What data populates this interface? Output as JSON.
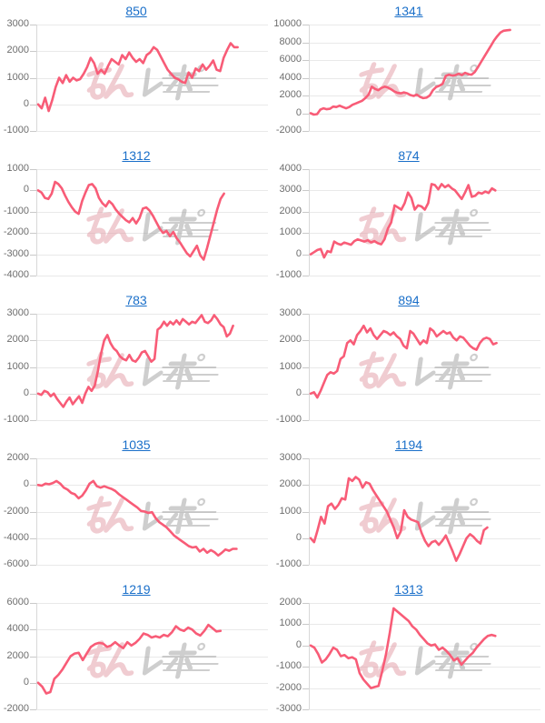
{
  "watermark": {
    "text": "みんレポ",
    "pink": "#e39aa5",
    "gray": "#9f9f9f",
    "opacity": 0.5
  },
  "colors": {
    "line": "#f85c77",
    "grid": "#e9e9e9",
    "tick_dash": "#c9c9c9",
    "axis": "#d8d8d8",
    "label": "#6e6e6e",
    "link": "#1a6fc9",
    "background": "#ffffff"
  },
  "chart_data": [
    {
      "type": "line",
      "title": "850",
      "legend": "none",
      "grid": "horizontal",
      "ticks": [
        3000,
        2000,
        1000,
        0,
        -1000
      ],
      "ylim": [
        -1000,
        3000
      ],
      "x_span": 0.875,
      "values": [
        0,
        -150,
        250,
        -250,
        150,
        650,
        1000,
        800,
        1100,
        850,
        1000,
        900,
        950,
        1150,
        1400,
        1750,
        1550,
        1150,
        1300,
        1150,
        1450,
        1700,
        1600,
        1500,
        1850,
        1700,
        1950,
        1750,
        1600,
        1700,
        1550,
        1850,
        1950,
        2150,
        2050,
        1800,
        1550,
        1300,
        1150,
        1000,
        950,
        850,
        800,
        1200,
        1000,
        1350,
        1250,
        1500,
        1300,
        1450,
        1650,
        1300,
        1250,
        1750,
        2050,
        2300,
        2150,
        2150
      ]
    },
    {
      "type": "line",
      "title": "1341",
      "legend": "none",
      "grid": "horizontal",
      "ticks": [
        10000,
        8000,
        6000,
        4000,
        2000,
        0,
        -2000
      ],
      "ylim": [
        -2000,
        10000
      ],
      "x_span": 0.875,
      "values": [
        0,
        -150,
        -100,
        400,
        550,
        450,
        500,
        750,
        700,
        850,
        700,
        550,
        700,
        950,
        1100,
        1250,
        1400,
        1700,
        2100,
        3000,
        2750,
        2600,
        2850,
        3000,
        2900,
        2700,
        2450,
        2300,
        2250,
        2350,
        2250,
        2050,
        1950,
        2100,
        1850,
        1700,
        1750,
        2000,
        2600,
        2950,
        3100,
        3300,
        4200,
        4350,
        4250,
        4300,
        4450,
        4300,
        4550,
        4400,
        4350,
        4650,
        5200,
        5800,
        6400,
        7000,
        7600,
        8200,
        8700,
        9100,
        9300,
        9350,
        9400
      ]
    },
    {
      "type": "line",
      "title": "1312",
      "legend": "none",
      "grid": "horizontal",
      "ticks": [
        1000,
        0,
        -1000,
        -2000,
        -3000,
        -4000
      ],
      "ylim": [
        -4000,
        1000
      ],
      "x_span": 0.815,
      "values": [
        0,
        -100,
        -350,
        -400,
        -150,
        400,
        300,
        100,
        -250,
        -550,
        -800,
        -1000,
        -1100,
        -500,
        -100,
        250,
        300,
        100,
        -350,
        -600,
        -750,
        -500,
        -650,
        -900,
        -1100,
        -1250,
        -1400,
        -1500,
        -1300,
        -1550,
        -1300,
        -850,
        -800,
        -950,
        -1200,
        -1500,
        -1800,
        -2000,
        -1900,
        -2150,
        -1950,
        -2250,
        -2450,
        -2700,
        -2950,
        -3100,
        -2850,
        -2600,
        -3050,
        -3250,
        -2700,
        -2100,
        -1500,
        -900,
        -400,
        -150
      ]
    },
    {
      "type": "line",
      "title": "874",
      "legend": "none",
      "grid": "horizontal",
      "ticks": [
        4000,
        3000,
        2000,
        1000,
        0,
        -1000
      ],
      "ylim": [
        -1000,
        4000
      ],
      "x_span": 0.81,
      "values": [
        0,
        100,
        200,
        250,
        -150,
        150,
        100,
        600,
        500,
        450,
        550,
        500,
        450,
        620,
        700,
        650,
        600,
        660,
        560,
        620,
        520,
        470,
        700,
        1200,
        1500,
        2300,
        2200,
        2100,
        2400,
        2900,
        2650,
        2100,
        2300,
        2250,
        2100,
        2400,
        3300,
        3250,
        3050,
        3300,
        3150,
        3250,
        3100,
        3000,
        2800,
        2600,
        2900,
        3250,
        2700,
        2750,
        2900,
        2850,
        2950,
        2880,
        3100,
        3000
      ]
    },
    {
      "type": "line",
      "title": "783",
      "legend": "none",
      "grid": "horizontal",
      "ticks": [
        3000,
        2000,
        1000,
        0,
        -1000
      ],
      "ylim": [
        -1000,
        3000
      ],
      "x_span": 0.855,
      "values": [
        0,
        -50,
        100,
        50,
        -100,
        0,
        -200,
        -350,
        -500,
        -300,
        -150,
        -400,
        -250,
        -100,
        -350,
        0,
        250,
        100,
        300,
        850,
        1500,
        2000,
        2200,
        1900,
        1700,
        1600,
        1400,
        1300,
        1250,
        1450,
        1250,
        1200,
        1350,
        1550,
        1600,
        1400,
        1200,
        1300,
        2400,
        2500,
        2700,
        2550,
        2700,
        2600,
        2750,
        2600,
        2800,
        2700,
        2600,
        2700,
        2650,
        2800,
        2950,
        2700,
        2650,
        2750,
        2950,
        2800,
        2600,
        2500,
        2150,
        2250,
        2550
      ]
    },
    {
      "type": "line",
      "title": "894",
      "legend": "none",
      "grid": "horizontal",
      "ticks": [
        3000,
        2000,
        1000,
        0,
        -1000
      ],
      "ylim": [
        -1000,
        3000
      ],
      "x_span": 0.815,
      "values": [
        0,
        50,
        -150,
        100,
        400,
        700,
        800,
        750,
        850,
        1300,
        1400,
        1900,
        2000,
        1850,
        2200,
        2350,
        2550,
        2300,
        2450,
        2200,
        2050,
        2200,
        2350,
        2300,
        2200,
        2300,
        2150,
        2050,
        1800,
        1700,
        2350,
        2250,
        2050,
        1850,
        2000,
        1900,
        2450,
        2350,
        2150,
        2250,
        2350,
        2250,
        2300,
        2100,
        2000,
        2150,
        2100,
        1950,
        1800,
        1700,
        1650,
        1900,
        2050,
        2100,
        2050,
        1850,
        1900
      ]
    },
    {
      "type": "line",
      "title": "1035",
      "legend": "none",
      "grid": "horizontal",
      "ticks": [
        2000,
        0,
        -2000,
        -4000,
        -6000
      ],
      "ylim": [
        -6000,
        2000
      ],
      "x_span": 0.87,
      "values": [
        0,
        -50,
        100,
        50,
        150,
        300,
        100,
        -200,
        -350,
        -600,
        -700,
        -1000,
        -800,
        -400,
        100,
        300,
        -100,
        -200,
        -100,
        -200,
        -300,
        -450,
        -700,
        -900,
        -1100,
        -1300,
        -1500,
        -1700,
        -1950,
        -2000,
        -2100,
        -2050,
        -2500,
        -2800,
        -3000,
        -3200,
        -3500,
        -3800,
        -4000,
        -4200,
        -4400,
        -4600,
        -4700,
        -4650,
        -5000,
        -4800,
        -5100,
        -4900,
        -5050,
        -5300,
        -5100,
        -4850,
        -4950,
        -4800,
        -4800
      ]
    },
    {
      "type": "line",
      "title": "1194",
      "legend": "none",
      "grid": "horizontal",
      "ticks": [
        3000,
        2000,
        1000,
        0,
        -1000
      ],
      "ylim": [
        -1000,
        3000
      ],
      "x_span": 0.775,
      "values": [
        0,
        -150,
        300,
        800,
        550,
        1200,
        1300,
        1100,
        1250,
        1500,
        1450,
        2250,
        2150,
        2300,
        2200,
        1900,
        2100,
        2050,
        1800,
        1600,
        1400,
        1200,
        1000,
        700,
        400,
        0,
        250,
        1050,
        800,
        700,
        650,
        600,
        200,
        -100,
        -300,
        -150,
        -100,
        -250,
        -100,
        100,
        -200,
        -500,
        -850,
        -600,
        -300,
        0,
        150,
        50,
        -100,
        -200,
        300,
        400
      ]
    },
    {
      "type": "line",
      "title": "1219",
      "legend": "none",
      "grid": "horizontal",
      "ticks": [
        6000,
        4000,
        2000,
        0,
        -2000
      ],
      "ylim": [
        -2000,
        6000
      ],
      "x_span": 0.8,
      "values": [
        0,
        -300,
        -800,
        -700,
        300,
        600,
        1000,
        1500,
        2000,
        2200,
        2250,
        1700,
        2200,
        2700,
        2900,
        3000,
        2950,
        2700,
        2800,
        3050,
        2800,
        2600,
        3050,
        2800,
        3000,
        3300,
        3700,
        3600,
        3400,
        3500,
        3400,
        3600,
        3500,
        3800,
        4250,
        4000,
        3900,
        4150,
        4000,
        3700,
        3550,
        3900,
        4350,
        4100,
        3850,
        3900
      ]
    },
    {
      "type": "line",
      "title": "1313",
      "legend": "none",
      "grid": "horizontal",
      "ticks": [
        2000,
        1000,
        0,
        -1000,
        -2000,
        -3000
      ],
      "ylim": [
        -3000,
        2000
      ],
      "x_span": 0.81,
      "values": [
        0,
        -100,
        -400,
        -800,
        -650,
        -400,
        -100,
        -200,
        -500,
        -450,
        -600,
        -550,
        -650,
        -1300,
        -1600,
        -1800,
        -2000,
        -1950,
        -1900,
        -1200,
        -400,
        600,
        1750,
        1600,
        1450,
        1300,
        1150,
        900,
        750,
        500,
        300,
        100,
        0,
        50,
        -200,
        -100,
        -250,
        -450,
        -700,
        -600,
        -900,
        -700,
        -500,
        -350,
        -100,
        100,
        300,
        450,
        500,
        450
      ]
    }
  ]
}
